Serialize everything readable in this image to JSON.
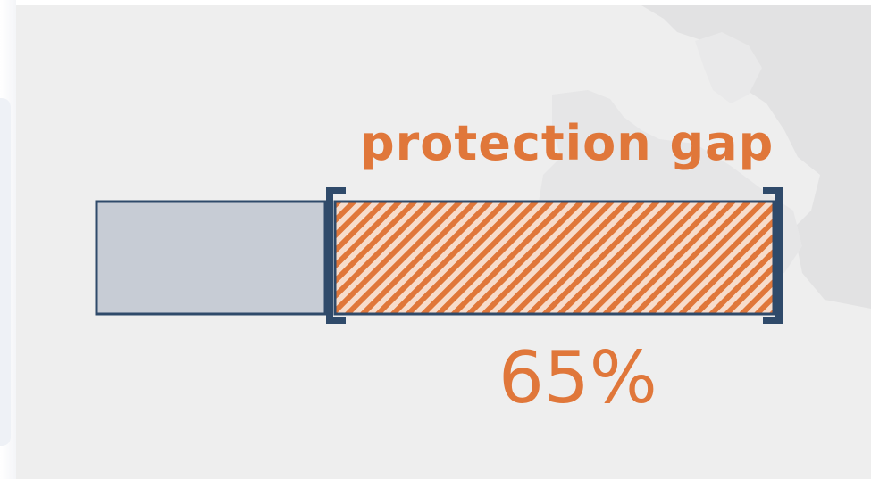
{
  "title": "protection gap",
  "percent_label": "65%",
  "protection_gap_fraction": 0.65,
  "colors": {
    "accent": "#e0773a",
    "bar_gray": "#c7ccd5",
    "outline": "#2f4a6a",
    "background": "#eeeeee",
    "map_land": "#e2e2e3"
  }
}
